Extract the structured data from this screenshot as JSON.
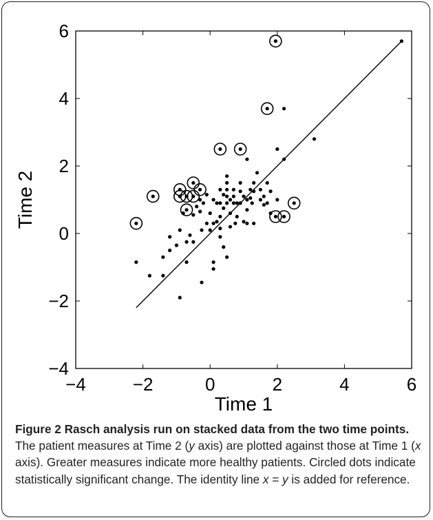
{
  "chart_data": {
    "type": "scatter",
    "xlabel": "Time 1",
    "ylabel": "Time 2",
    "xlim": [
      -4,
      6
    ],
    "ylim": [
      -4,
      6
    ],
    "xticks": [
      "−4",
      "−2",
      "0",
      "2",
      "4",
      "6"
    ],
    "yticks": [
      "−4",
      "−2",
      "0",
      "2",
      "4",
      "6"
    ],
    "identity_line": [
      [
        -2.2,
        -2.2
      ],
      [
        5.7,
        5.7
      ]
    ],
    "series": [
      {
        "points": [
          [
            -2.2,
            -0.85
          ],
          [
            -1.8,
            -1.25
          ],
          [
            -1.4,
            -1.25
          ],
          [
            -1.4,
            -0.7
          ],
          [
            -1.2,
            -0.5
          ],
          [
            -1.2,
            -0.1
          ],
          [
            -1.0,
            -0.35
          ],
          [
            -0.9,
            0.1
          ],
          [
            -0.8,
            0.6
          ],
          [
            -0.7,
            -0.85
          ],
          [
            -0.7,
            -0.25
          ],
          [
            -0.6,
            -0.05
          ],
          [
            -0.5,
            -0.25
          ],
          [
            -0.5,
            0.55
          ],
          [
            -0.4,
            0.8
          ],
          [
            -0.3,
            1.0
          ],
          [
            -0.3,
            0.65
          ],
          [
            -0.25,
            0.1
          ],
          [
            -0.9,
            -1.9
          ],
          [
            -0.25,
            -1.45
          ],
          [
            -0.2,
            0.9
          ],
          [
            -0.1,
            1.15
          ],
          [
            -0.1,
            0.3
          ],
          [
            0.0,
            0.6
          ],
          [
            0.0,
            0.1
          ],
          [
            0.1,
            1.0
          ],
          [
            0.1,
            0.3
          ],
          [
            0.1,
            -0.85
          ],
          [
            0.1,
            -1.05
          ],
          [
            0.2,
            0.9
          ],
          [
            0.2,
            0.35
          ],
          [
            0.3,
            1.3
          ],
          [
            0.3,
            0.9
          ],
          [
            0.3,
            0.5
          ],
          [
            0.3,
            0.15
          ],
          [
            0.3,
            -0.1
          ],
          [
            0.4,
            1.15
          ],
          [
            0.4,
            0.75
          ],
          [
            0.4,
            -0.4
          ],
          [
            0.5,
            1.7
          ],
          [
            0.5,
            1.5
          ],
          [
            0.5,
            1.3
          ],
          [
            0.5,
            1.1
          ],
          [
            0.5,
            0.9
          ],
          [
            0.5,
            -0.7
          ],
          [
            0.6,
            1.0
          ],
          [
            0.6,
            0.6
          ],
          [
            0.6,
            0.2
          ],
          [
            0.7,
            1.3
          ],
          [
            0.7,
            1.1
          ],
          [
            0.7,
            0.9
          ],
          [
            0.75,
            0.3
          ],
          [
            0.8,
            0.9
          ],
          [
            0.8,
            0.5
          ],
          [
            0.9,
            1.5
          ],
          [
            0.9,
            1.25
          ],
          [
            0.9,
            0.9
          ],
          [
            1.0,
            1.1
          ],
          [
            1.0,
            0.35
          ],
          [
            1.1,
            2.2
          ],
          [
            1.1,
            1.0
          ],
          [
            1.1,
            0.7
          ],
          [
            1.1,
            0.3
          ],
          [
            1.2,
            1.3
          ],
          [
            1.2,
            1.05
          ],
          [
            1.25,
            0.9
          ],
          [
            1.3,
            1.5
          ],
          [
            1.3,
            1.25
          ],
          [
            1.3,
            0.3
          ],
          [
            1.4,
            1.8
          ],
          [
            1.5,
            1.0
          ],
          [
            1.5,
            1.3
          ],
          [
            1.6,
            1.1
          ],
          [
            1.6,
            0.85
          ],
          [
            1.7,
            1.5
          ],
          [
            1.7,
            0.9
          ],
          [
            1.8,
            1.25
          ],
          [
            1.8,
            0.6
          ],
          [
            2.0,
            2.5
          ],
          [
            2.0,
            1.0
          ],
          [
            2.2,
            3.7
          ],
          [
            2.2,
            2.2
          ],
          [
            3.1,
            2.8
          ],
          [
            5.7,
            5.7
          ]
        ]
      },
      {
        "points": [
          [
            -2.2,
            0.3
          ],
          [
            -1.7,
            1.1
          ],
          [
            -0.9,
            1.3
          ],
          [
            -0.9,
            1.1
          ],
          [
            -0.7,
            1.1
          ],
          [
            -0.7,
            0.7
          ],
          [
            -0.5,
            1.5
          ],
          [
            -0.5,
            1.1
          ],
          [
            -0.3,
            1.3
          ],
          [
            0.3,
            2.5
          ],
          [
            0.9,
            2.5
          ],
          [
            1.7,
            3.7
          ],
          [
            1.95,
            5.7
          ],
          [
            1.95,
            0.5
          ],
          [
            2.2,
            0.5
          ],
          [
            2.5,
            0.9
          ]
        ]
      }
    ]
  },
  "caption": {
    "bold": "Figure 2 Rasch analysis run on stacked data from the two time points.",
    "text_1": " The patient measures at Time 2 (",
    "y_var": "y",
    "text_2": " axis) are plotted against those at Time 1 (",
    "x_var": "x",
    "text_3": " axis). Greater measures indicate more healthy patients. Circled dots indicate statistically significant change. The identity line ",
    "eq_x": "x",
    "eq_sign": " = ",
    "eq_y": "y",
    "text_4": " is added for reference."
  }
}
